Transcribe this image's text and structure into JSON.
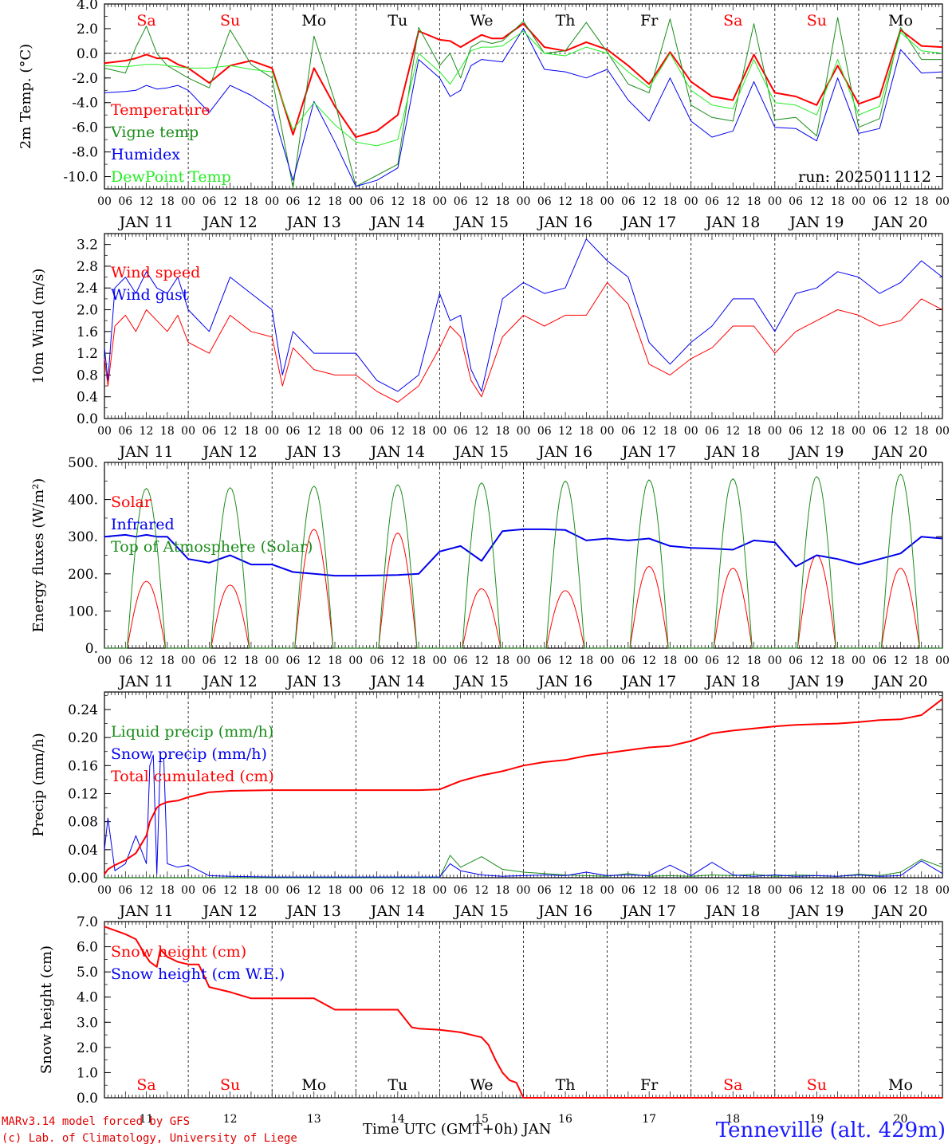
{
  "run_label": "run: 2025011112",
  "footer": {
    "credit_line1": "MARv3.14 model forced by GFS",
    "credit_line2": "(c) Lab. of Climatology, University of Liege",
    "time_axis_title": "Time UTC (GMT+0h) JAN",
    "station": "Tenneville (alt. 429m)"
  },
  "colors": {
    "red": "#ff0000",
    "green": "#1a8c1a",
    "blue": "#0000ee",
    "lightgreen": "#22ee22",
    "weekend": "#ff0000"
  },
  "axis": {
    "hour_ticks": [
      "00",
      "06",
      "12",
      "18"
    ],
    "day_labels": [
      "JAN 11",
      "JAN 12",
      "JAN 13",
      "JAN 14",
      "JAN 15",
      "JAN 16",
      "JAN 17",
      "JAN 18",
      "JAN 19",
      "JAN 20"
    ],
    "weekdays": [
      "Sa",
      "Su",
      "Mo",
      "Tu",
      "We",
      "Th",
      "Fr",
      "Sa",
      "Su",
      "Mo"
    ],
    "weekend_flags": [
      true,
      true,
      false,
      false,
      false,
      false,
      false,
      true,
      true,
      false
    ],
    "day_numbers": [
      "11",
      "12",
      "13",
      "14",
      "15",
      "16",
      "17",
      "18",
      "19",
      "20"
    ]
  },
  "chart_data": [
    {
      "type": "line",
      "ylabel": "2m Temp. (°C)",
      "ylim": [
        -11,
        4
      ],
      "yticks": [
        "4.0",
        "2.0",
        "0.0",
        "-2.0",
        "-4.0",
        "-6.0",
        "-8.0",
        "-10.0"
      ],
      "ytick_values": [
        4,
        2,
        0,
        -2,
        -4,
        -6,
        -8,
        -10
      ],
      "hours": [
        0,
        6,
        9,
        12,
        15,
        18,
        21,
        24,
        30,
        36,
        42,
        48,
        54,
        60,
        66,
        72,
        78,
        84,
        90,
        96,
        99,
        102,
        105,
        108,
        111,
        114,
        120,
        126,
        132,
        138,
        144,
        150,
        156,
        162,
        168,
        174,
        180,
        186,
        192,
        198,
        204,
        210,
        216,
        222,
        228,
        234,
        240
      ],
      "series": [
        {
          "name": "Temperature",
          "color": "#ff0000",
          "width": 2,
          "values": [
            -0.8,
            -0.6,
            -0.4,
            -0.1,
            -0.4,
            -0.4,
            -0.9,
            -1.2,
            -2.4,
            -1.0,
            -0.6,
            -1.2,
            -6.6,
            -1.2,
            -4.3,
            -6.8,
            -6.3,
            -5.0,
            1.8,
            1.1,
            1.0,
            0.5,
            1.0,
            1.5,
            1.2,
            1.2,
            2.4,
            0.5,
            0.2,
            0.9,
            0.3,
            -1.0,
            -2.5,
            0.1,
            -2.3,
            -3.5,
            -3.8,
            -0.1,
            -3.2,
            -3.5,
            -4.2,
            -1.0,
            -4.1,
            -3.5,
            1.9,
            0.6,
            0.5
          ]
        },
        {
          "name": "Vigne temp",
          "color": "#1a8c1a",
          "width": 1,
          "values": [
            -1.2,
            -1.6,
            0.5,
            2.2,
            0.0,
            -1.0,
            -1.5,
            -2.0,
            -2.8,
            1.9,
            -0.9,
            -2.0,
            -10.9,
            1.4,
            -3.9,
            -10.8,
            -9.9,
            -9.0,
            2.1,
            -1.0,
            0.0,
            -2.0,
            0.5,
            1.0,
            0.8,
            1.0,
            2.6,
            0.0,
            0.2,
            2.5,
            0.1,
            -2.5,
            -3.2,
            2.8,
            -4.2,
            -5.2,
            -5.5,
            2.4,
            -5.4,
            -5.2,
            -6.7,
            2.9,
            -6.0,
            -5.3,
            2.1,
            -0.5,
            -0.5
          ]
        },
        {
          "name": "Humidex",
          "color": "#0000ee",
          "width": 1,
          "values": [
            -3.2,
            -3.1,
            -3.0,
            -2.6,
            -2.9,
            -2.8,
            -2.6,
            -3.0,
            -4.8,
            -2.6,
            -3.4,
            -4.5,
            -10.3,
            -3.9,
            -7.2,
            -10.8,
            -10.3,
            -9.3,
            -0.5,
            -2.0,
            -3.5,
            -3.0,
            -1.0,
            -0.5,
            -0.6,
            -0.7,
            2.0,
            -1.3,
            -1.5,
            -2.0,
            -1.3,
            -3.8,
            -5.5,
            -2.0,
            -5.5,
            -6.8,
            -6.3,
            -2.3,
            -6.0,
            -6.1,
            -7.1,
            -2.0,
            -6.5,
            -6.1,
            0.3,
            -1.6,
            -1.5
          ]
        },
        {
          "name": "DewPoint Temp",
          "color": "#22ee22",
          "width": 1,
          "values": [
            -1.0,
            -1.1,
            -1.0,
            -0.9,
            -0.9,
            -1.0,
            -1.1,
            -1.2,
            -1.2,
            -1.0,
            -1.3,
            -1.5,
            -6.2,
            -4.0,
            -5.8,
            -7.2,
            -7.5,
            -7.0,
            0.0,
            -1.5,
            -2.5,
            -1.2,
            0.2,
            0.5,
            0.5,
            0.6,
            1.8,
            0.0,
            -0.2,
            0.5,
            0.0,
            -1.5,
            -2.8,
            0.0,
            -3.0,
            -4.2,
            -4.5,
            -0.5,
            -4.0,
            -4.2,
            -5.0,
            -0.5,
            -5.0,
            -4.3,
            1.7,
            0.2,
            0.0
          ]
        }
      ]
    },
    {
      "type": "line",
      "ylabel": "10m Wind (m/s)",
      "ylim": [
        0,
        3.4
      ],
      "yticks": [
        "3.2",
        "2.8",
        "2.4",
        "2.0",
        "1.6",
        "1.2",
        "0.8",
        "0.4",
        "0.0"
      ],
      "ytick_values": [
        3.2,
        2.8,
        2.4,
        2.0,
        1.6,
        1.2,
        0.8,
        0.4,
        0.0
      ],
      "hours": [
        0,
        1,
        3,
        6,
        9,
        12,
        15,
        18,
        21,
        24,
        30,
        36,
        42,
        48,
        51,
        54,
        60,
        66,
        72,
        78,
        84,
        90,
        96,
        99,
        102,
        105,
        108,
        114,
        120,
        126,
        132,
        138,
        144,
        150,
        156,
        162,
        168,
        174,
        180,
        186,
        192,
        198,
        204,
        210,
        216,
        222,
        228,
        234,
        240
      ],
      "series": [
        {
          "name": "Wind speed",
          "color": "#ff0000",
          "width": 1,
          "values": [
            1.1,
            0.6,
            1.7,
            1.9,
            1.6,
            2.0,
            1.8,
            1.6,
            1.9,
            1.4,
            1.2,
            1.9,
            1.6,
            1.5,
            0.6,
            1.3,
            0.9,
            0.8,
            0.8,
            0.5,
            0.3,
            0.6,
            1.3,
            1.7,
            1.5,
            0.7,
            0.4,
            1.5,
            1.9,
            1.7,
            1.9,
            1.9,
            2.5,
            2.1,
            1.0,
            0.8,
            1.1,
            1.3,
            1.7,
            1.7,
            1.2,
            1.6,
            1.8,
            2.0,
            1.9,
            1.7,
            1.8,
            2.2,
            2.0
          ]
        },
        {
          "name": "Wind gust",
          "color": "#0000ee",
          "width": 1,
          "values": [
            1.3,
            0.7,
            2.4,
            2.6,
            2.3,
            2.7,
            2.4,
            2.3,
            2.6,
            2.0,
            1.6,
            2.6,
            2.3,
            2.0,
            0.8,
            1.6,
            1.2,
            1.2,
            1.2,
            0.7,
            0.5,
            0.8,
            2.3,
            1.8,
            1.9,
            0.9,
            0.5,
            2.2,
            2.5,
            2.3,
            2.4,
            3.3,
            2.9,
            2.6,
            1.4,
            1.0,
            1.4,
            1.7,
            2.2,
            2.2,
            1.6,
            2.3,
            2.4,
            2.7,
            2.6,
            2.3,
            2.5,
            2.9,
            2.6
          ]
        }
      ]
    },
    {
      "type": "line",
      "ylabel": "Energy fluxes (W/m²)",
      "ylim": [
        0,
        500
      ],
      "yticks": [
        "500.",
        "400.",
        "300.",
        "200.",
        "100.",
        "0."
      ],
      "ytick_values": [
        500,
        400,
        300,
        200,
        100,
        0
      ],
      "hours": [
        0,
        6,
        9,
        12,
        15,
        18,
        24,
        30,
        36,
        42,
        48,
        54,
        60,
        66,
        72,
        78,
        84,
        90,
        96,
        102,
        108,
        114,
        120,
        126,
        132,
        138,
        144,
        150,
        156,
        162,
        168,
        174,
        180,
        186,
        192,
        198,
        204,
        210,
        216,
        222,
        228,
        234,
        240
      ],
      "series": [
        {
          "name": "Solar",
          "color": "#ff0000",
          "width": 1,
          "dayNight": true,
          "peaks": [
            180,
            170,
            320,
            310,
            160,
            155,
            220,
            215,
            250,
            215
          ]
        },
        {
          "name": "Infrared",
          "color": "#0000ee",
          "width": 2,
          "values": [
            300,
            305,
            300,
            305,
            300,
            300,
            240,
            230,
            250,
            225,
            225,
            205,
            200,
            195,
            195,
            196,
            197,
            200,
            260,
            275,
            235,
            315,
            320,
            320,
            318,
            290,
            295,
            290,
            295,
            275,
            270,
            268,
            265,
            290,
            285,
            220,
            250,
            240,
            225,
            240,
            255,
            300,
            295
          ]
        },
        {
          "name": "Top of Atmosphere (Solar)",
          "color": "#1a8c1a",
          "width": 1,
          "dayNight": true,
          "peaks": [
            430,
            432,
            436,
            440,
            445,
            450,
            453,
            456,
            462,
            468
          ]
        }
      ]
    },
    {
      "type": "line",
      "ylabel": "Precip (mm/h)",
      "ylim": [
        0,
        0.265
      ],
      "yticks": [
        "0.24",
        "0.20",
        "0.16",
        "0.12",
        "0.08",
        "0.04",
        "0.00"
      ],
      "ytick_values": [
        0.24,
        0.2,
        0.16,
        0.12,
        0.08,
        0.04,
        0.0
      ],
      "hours": [
        0,
        1,
        3,
        6,
        9,
        12,
        13,
        14,
        15,
        16,
        17,
        18,
        21,
        24,
        30,
        36,
        48,
        60,
        72,
        84,
        90,
        96,
        99,
        102,
        108,
        114,
        120,
        126,
        132,
        138,
        144,
        150,
        156,
        162,
        168,
        174,
        180,
        186,
        192,
        198,
        204,
        210,
        216,
        222,
        228,
        234,
        240
      ],
      "series": [
        {
          "name": "Liquid precip (mm/h)",
          "color": "#1a8c1a",
          "width": 1,
          "values": [
            0,
            0,
            0,
            0,
            0,
            0,
            0,
            0,
            0,
            0,
            0,
            0,
            0,
            0,
            0,
            0,
            0,
            0,
            0,
            0,
            0,
            0,
            0.032,
            0.015,
            0.03,
            0.012,
            0.008,
            0.006,
            0.004,
            0.003,
            0.002,
            0.006,
            0.002,
            0.003,
            0.002,
            0.004,
            0.003,
            0.005,
            0.002,
            0.004,
            0.003,
            0.002,
            0.005,
            0.003,
            0.008,
            0.026,
            0.015
          ]
        },
        {
          "name": "Snow precip (mm/h)",
          "color": "#0000ee",
          "width": 1,
          "values": [
            0.04,
            0.085,
            0.01,
            0.02,
            0.06,
            0.02,
            0.16,
            0.175,
            0.005,
            0.17,
            0.17,
            0.02,
            0.015,
            0.018,
            0.003,
            0.002,
            0.001,
            0.001,
            0.001,
            0.001,
            0.001,
            0.001,
            0.02,
            0.01,
            0.004,
            0.002,
            0.003,
            0.004,
            0.003,
            0.008,
            0.003,
            0.004,
            0.003,
            0.018,
            0.003,
            0.022,
            0.004,
            0.002,
            0.004,
            0.002,
            0.003,
            0.002,
            0.004,
            0.002,
            0.003,
            0.024,
            0.006
          ]
        },
        {
          "name": "Total cumulated (cm)",
          "color": "#ff0000",
          "width": 2,
          "values": [
            0.005,
            0.012,
            0.018,
            0.025,
            0.035,
            0.06,
            0.08,
            0.09,
            0.1,
            0.104,
            0.106,
            0.108,
            0.11,
            0.115,
            0.122,
            0.124,
            0.125,
            0.125,
            0.125,
            0.125,
            0.125,
            0.126,
            0.132,
            0.138,
            0.146,
            0.152,
            0.16,
            0.165,
            0.168,
            0.174,
            0.178,
            0.182,
            0.186,
            0.188,
            0.195,
            0.206,
            0.21,
            0.213,
            0.216,
            0.218,
            0.219,
            0.22,
            0.222,
            0.225,
            0.226,
            0.232,
            0.255
          ]
        }
      ]
    },
    {
      "type": "line",
      "ylabel": "Snow height (cm)",
      "ylim": [
        0,
        7.0
      ],
      "yticks": [
        "7.0",
        "6.0",
        "5.0",
        "4.0",
        "3.0",
        "2.0",
        "1.0",
        "0.0"
      ],
      "ytick_values": [
        7,
        6,
        5,
        4,
        3,
        2,
        1,
        0
      ],
      "hours": [
        0,
        6,
        9,
        12,
        13,
        14,
        15,
        16,
        18,
        21,
        24,
        27,
        30,
        36,
        42,
        48,
        60,
        66,
        72,
        84,
        88,
        90,
        96,
        102,
        108,
        110,
        112,
        114,
        116,
        118,
        120,
        240
      ],
      "series": [
        {
          "name": "Snow height (cm)",
          "color": "#ff0000",
          "width": 2,
          "values": [
            6.8,
            6.5,
            6.3,
            5.6,
            5.4,
            5.3,
            5.2,
            5.9,
            5.6,
            5.4,
            5.3,
            5.3,
            4.4,
            4.2,
            3.95,
            3.95,
            3.95,
            3.5,
            3.5,
            3.5,
            2.8,
            2.75,
            2.7,
            2.6,
            2.4,
            2.1,
            1.5,
            1.0,
            0.7,
            0.6,
            0.0,
            0.0
          ]
        },
        {
          "name": "Snow height (cm W.E.)",
          "color": "#0000ee",
          "width": 1,
          "values": []
        }
      ]
    }
  ]
}
